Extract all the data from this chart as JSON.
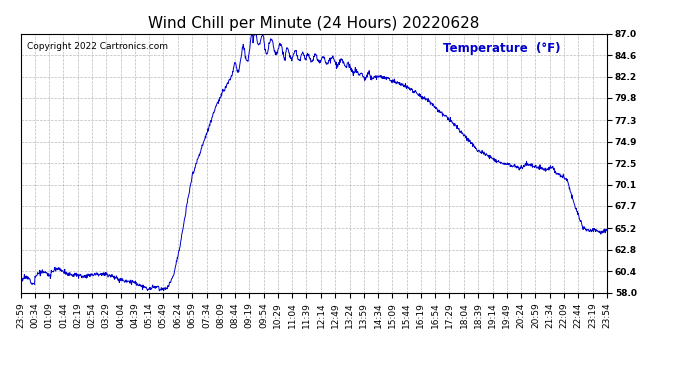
{
  "title": "Wind Chill per Minute (24 Hours) 20220628",
  "copyright_text": "Copyright 2022 Cartronics.com",
  "legend_label": "Temperature  (°F)",
  "line_color": "#0000cc",
  "bg_color": "#ffffff",
  "grid_color": "#aaaaaa",
  "ylim": [
    58.0,
    87.0
  ],
  "yticks": [
    58.0,
    60.4,
    62.8,
    65.2,
    67.7,
    70.1,
    72.5,
    74.9,
    77.3,
    79.8,
    82.2,
    84.6,
    87.0
  ],
  "x_labels": [
    "23:59",
    "00:34",
    "01:09",
    "01:44",
    "02:19",
    "02:54",
    "03:29",
    "04:04",
    "04:39",
    "05:14",
    "05:49",
    "06:24",
    "06:59",
    "07:34",
    "08:09",
    "08:44",
    "09:19",
    "09:54",
    "10:29",
    "11:04",
    "11:39",
    "12:14",
    "12:49",
    "13:24",
    "13:59",
    "14:34",
    "15:09",
    "15:44",
    "16:19",
    "16:54",
    "17:29",
    "18:04",
    "18:39",
    "19:14",
    "19:49",
    "20:24",
    "20:59",
    "21:34",
    "22:09",
    "22:44",
    "23:19",
    "23:54"
  ],
  "title_fontsize": 11,
  "tick_fontsize": 6.5,
  "copyright_fontsize": 6.5,
  "legend_fontsize": 8.5
}
